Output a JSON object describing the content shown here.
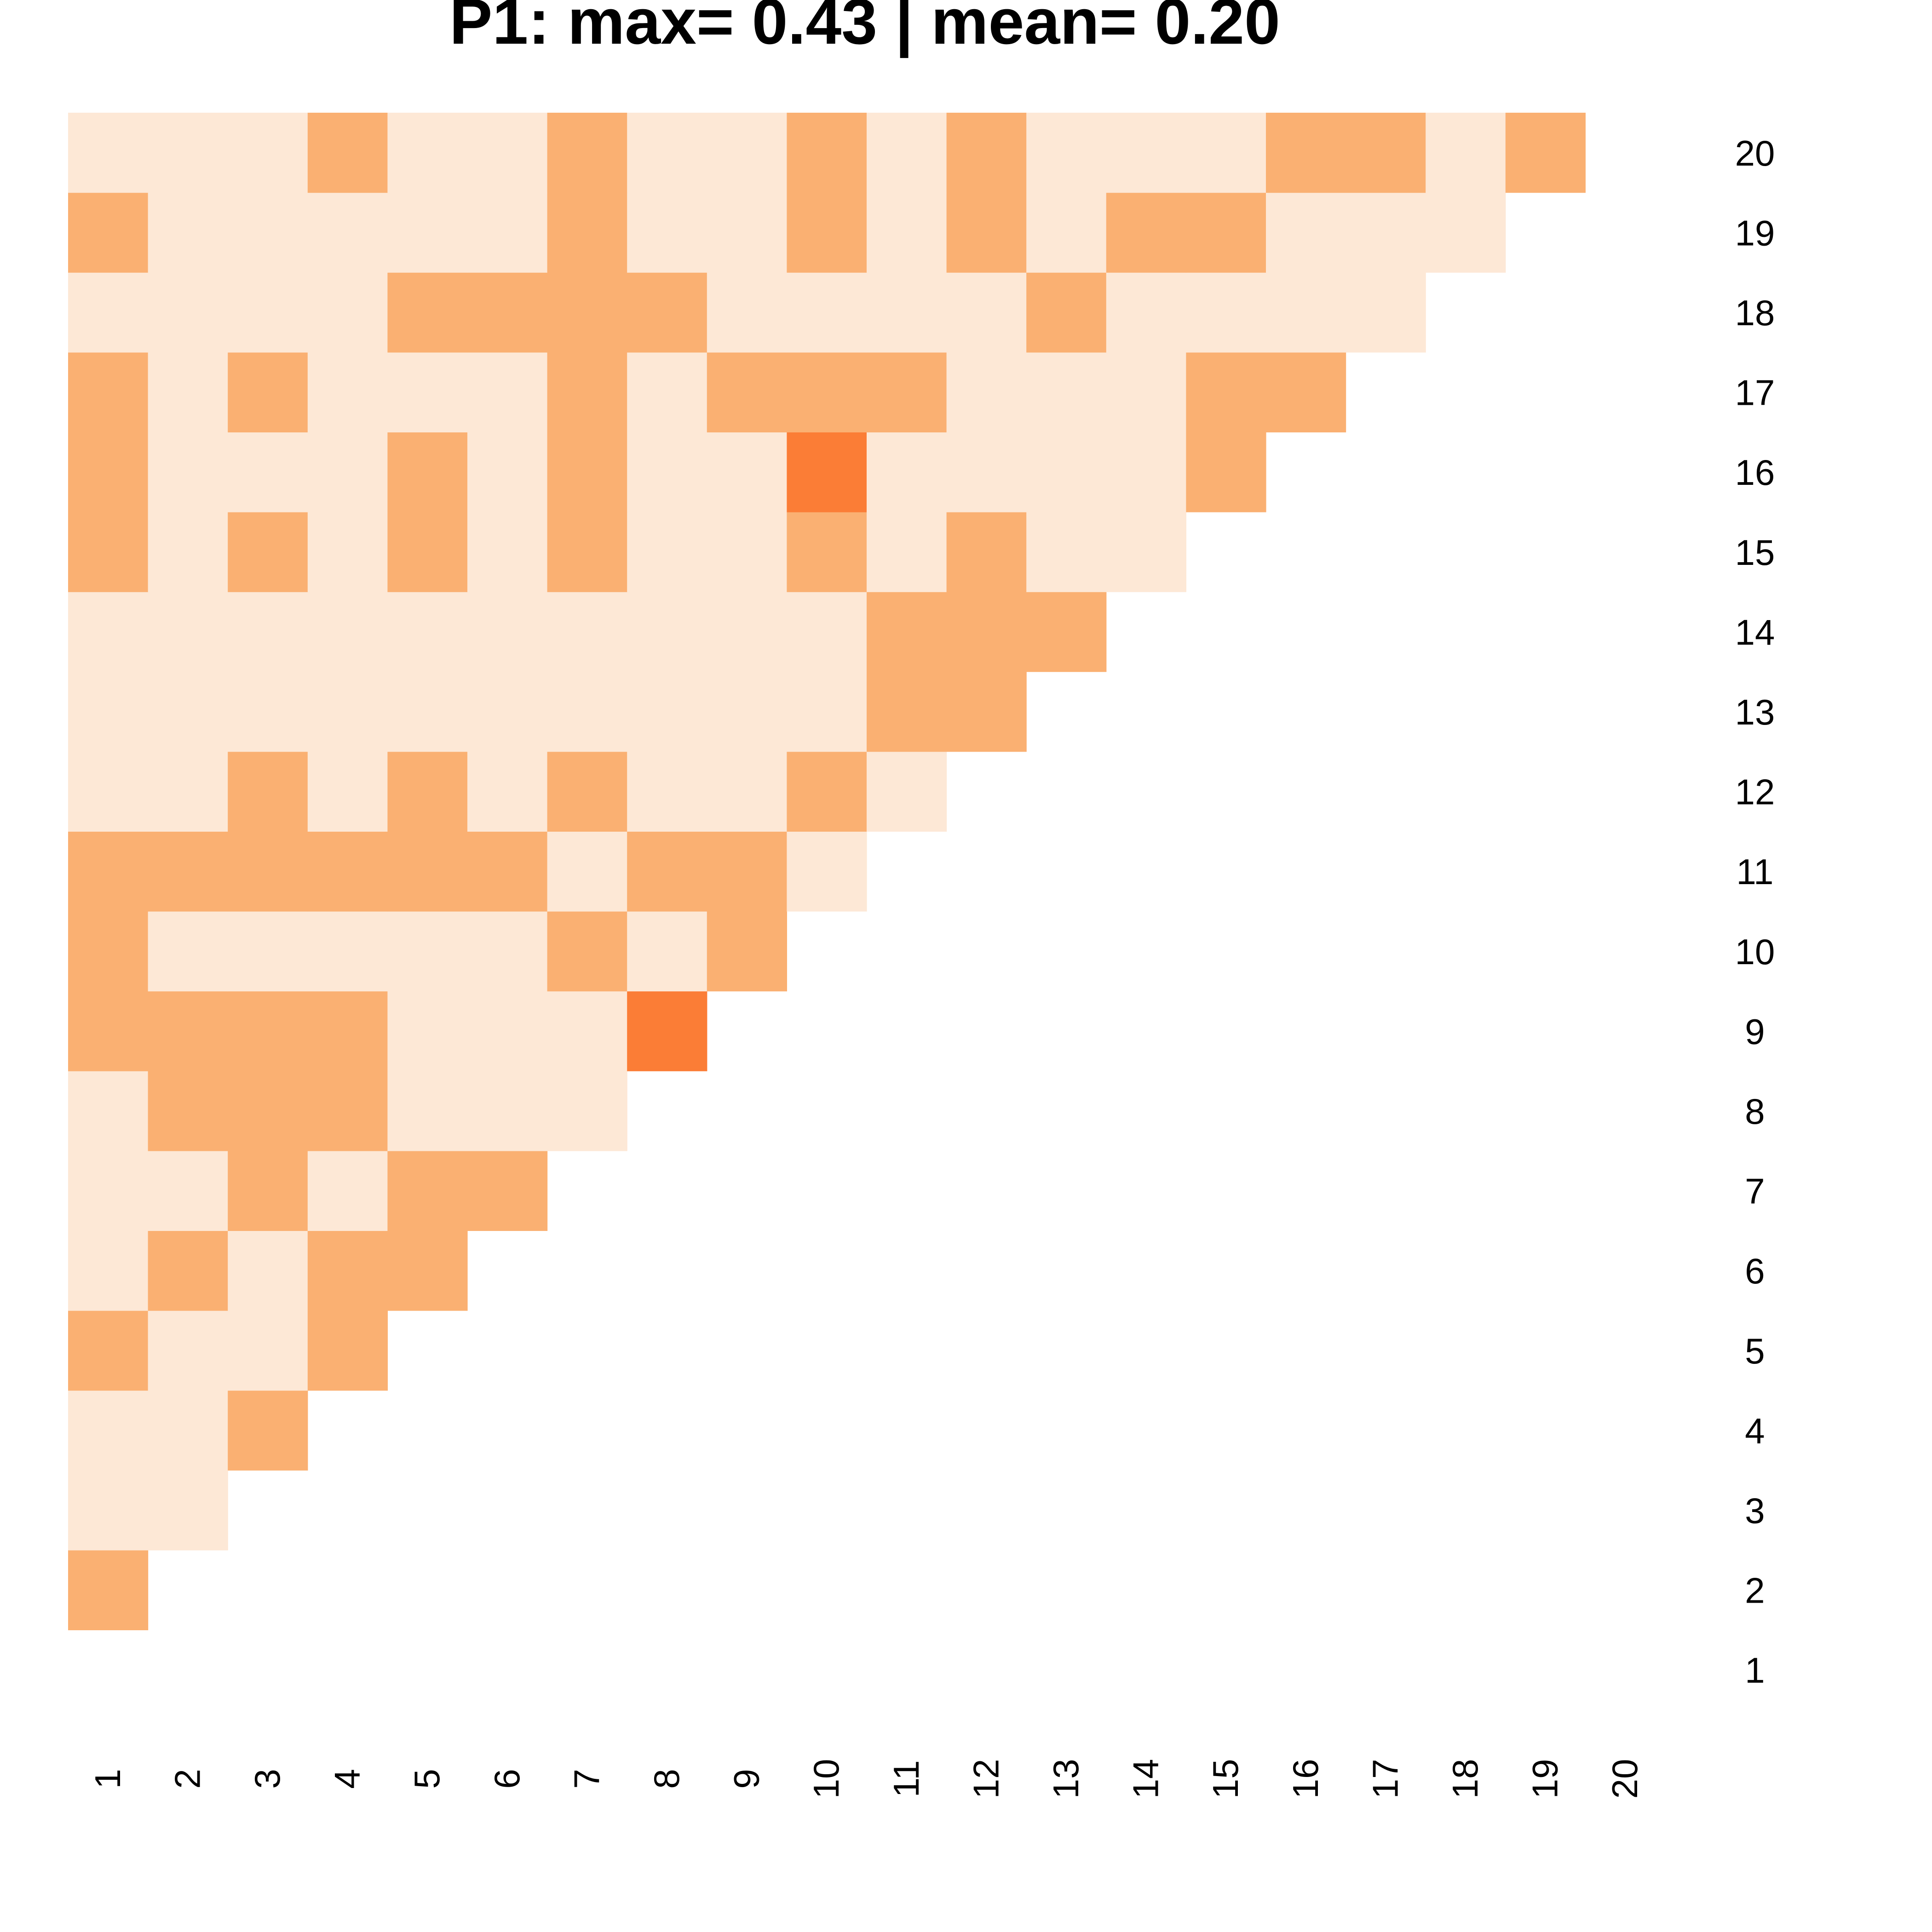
{
  "chart_data": {
    "type": "heatmap",
    "title": "P1: max= 0.43 | mean= 0.20",
    "x_categories": [
      "1",
      "2",
      "3",
      "4",
      "5",
      "6",
      "7",
      "8",
      "9",
      "10",
      "11",
      "12",
      "13",
      "14",
      "15",
      "16",
      "17",
      "18",
      "19",
      "20"
    ],
    "y_categories": [
      "1",
      "2",
      "3",
      "4",
      "5",
      "6",
      "7",
      "8",
      "9",
      "10",
      "11",
      "12",
      "13",
      "14",
      "15",
      "16",
      "17",
      "18",
      "19",
      "20"
    ],
    "xlabel": "",
    "ylabel": "",
    "lower_triangle_only": true,
    "level_colors": {
      "0": "#fde8d6",
      "1": "#fab072",
      "2": "#fb7d36"
    },
    "matrix_levels": {
      "2": [
        1
      ],
      "3": [
        0,
        0
      ],
      "4": [
        0,
        0,
        1
      ],
      "5": [
        1,
        0,
        0,
        1
      ],
      "6": [
        0,
        1,
        0,
        1,
        1
      ],
      "7": [
        0,
        0,
        1,
        0,
        1,
        1
      ],
      "8": [
        0,
        1,
        1,
        1,
        0,
        0,
        0
      ],
      "9": [
        1,
        1,
        1,
        1,
        0,
        0,
        0,
        2
      ],
      "10": [
        1,
        0,
        0,
        0,
        0,
        0,
        1,
        0,
        1
      ],
      "11": [
        1,
        1,
        1,
        1,
        1,
        1,
        0,
        1,
        1,
        0
      ],
      "12": [
        0,
        0,
        1,
        0,
        1,
        0,
        1,
        0,
        0,
        1,
        0
      ],
      "13": [
        0,
        0,
        0,
        0,
        0,
        0,
        0,
        0,
        0,
        0,
        1,
        1
      ],
      "14": [
        0,
        0,
        0,
        0,
        0,
        0,
        0,
        0,
        0,
        0,
        1,
        1,
        1
      ],
      "15": [
        1,
        0,
        1,
        0,
        1,
        0,
        1,
        0,
        0,
        1,
        0,
        1,
        0,
        0
      ],
      "16": [
        1,
        0,
        0,
        0,
        1,
        0,
        1,
        0,
        0,
        2,
        0,
        0,
        0,
        0,
        1
      ],
      "17": [
        1,
        0,
        1,
        0,
        0,
        0,
        1,
        0,
        1,
        1,
        1,
        0,
        0,
        0,
        1,
        1
      ],
      "18": [
        0,
        0,
        0,
        0,
        1,
        1,
        1,
        1,
        0,
        0,
        0,
        0,
        1,
        0,
        0,
        0,
        0
      ],
      "19": [
        1,
        0,
        0,
        0,
        0,
        0,
        1,
        0,
        0,
        1,
        0,
        1,
        0,
        1,
        1,
        0,
        0,
        0
      ],
      "20": [
        0,
        0,
        0,
        1,
        0,
        0,
        1,
        0,
        0,
        1,
        0,
        1,
        0,
        0,
        0,
        1,
        1,
        0,
        1
      ]
    }
  }
}
